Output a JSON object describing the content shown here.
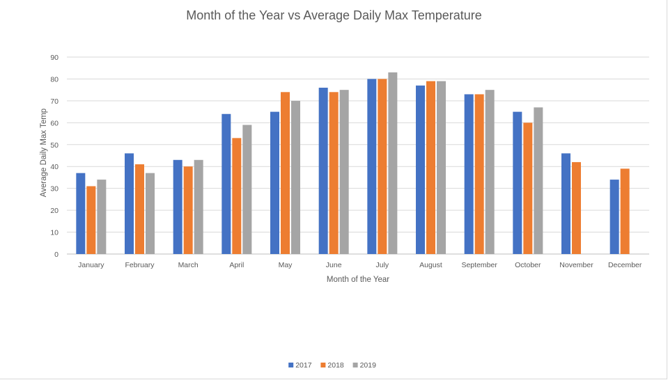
{
  "chart_data": {
    "type": "bar",
    "title": "Month of the Year vs Average Daily Max Temperature",
    "xlabel": "Month of the Year",
    "ylabel": "Average Daily Max Temp",
    "categories": [
      "January",
      "February",
      "March",
      "April",
      "May",
      "June",
      "July",
      "August",
      "September",
      "October",
      "November",
      "December"
    ],
    "series": [
      {
        "name": "2017",
        "color": "#4472c4",
        "values": [
          37,
          46,
          43,
          64,
          65,
          76,
          80,
          77,
          73,
          65,
          46,
          34
        ]
      },
      {
        "name": "2018",
        "color": "#ed7d31",
        "values": [
          31,
          41,
          40,
          53,
          74,
          74,
          80,
          79,
          73,
          60,
          42,
          39
        ]
      },
      {
        "name": "2019",
        "color": "#a5a5a5",
        "values": [
          34,
          37,
          43,
          59,
          70,
          75,
          83,
          79,
          75,
          67,
          null,
          null
        ]
      }
    ],
    "ylim": [
      0,
      90
    ],
    "yticks": [
      0,
      10,
      20,
      30,
      40,
      50,
      60,
      70,
      80,
      90
    ],
    "grid": true,
    "legend_position": "bottom"
  }
}
